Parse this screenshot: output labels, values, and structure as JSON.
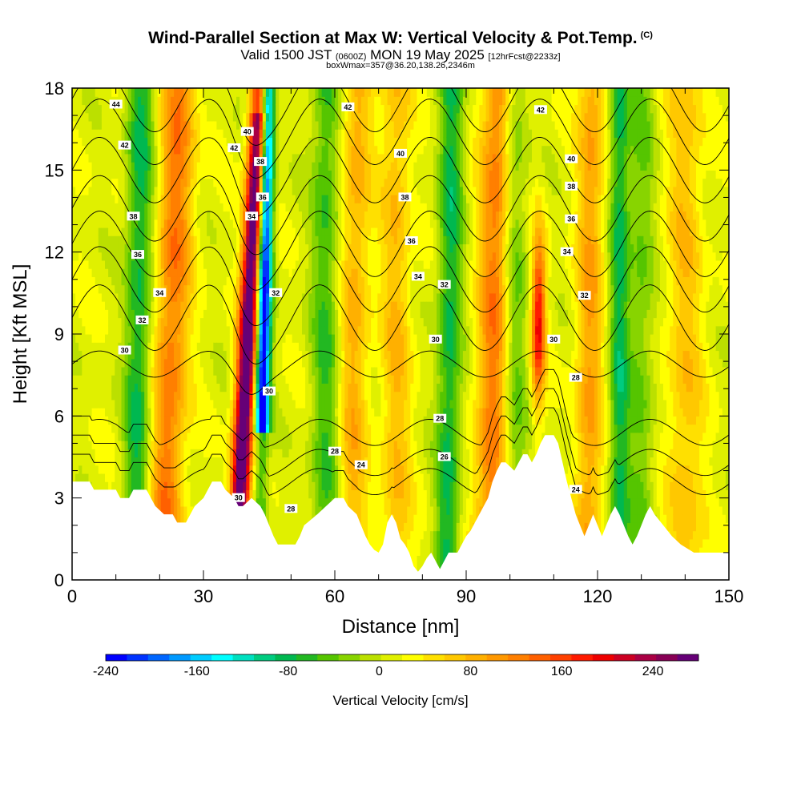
{
  "header": {
    "title": "Wind-Parallel Section at Max W: Vertical Velocity & Pot.Temp.",
    "copyright": "(C)",
    "valid_prefix": "Valid 1500 JST",
    "valid_utc": "(0600Z)",
    "valid_date": "MON 19 May 2025",
    "forecast": "[12hrFcst@2233z]",
    "box_info": "boxWmax=357@36.20,138.26,2346m"
  },
  "chart_data": {
    "type": "heatmap",
    "xlabel": "Distance [nm]",
    "ylabel": "Height [Kft MSL]",
    "xlim": [
      0,
      150
    ],
    "ylim": [
      0,
      18
    ],
    "x_ticks": [
      "0",
      "30",
      "60",
      "90",
      "120",
      "150"
    ],
    "y_ticks": [
      "0",
      "3",
      "6",
      "9",
      "12",
      "15",
      "18"
    ],
    "colorbar": {
      "title": "Vertical Velocity [cm/s]",
      "range": [
        -240,
        280
      ],
      "tick_labels": [
        "-240",
        "-160",
        "-80",
        "0",
        "80",
        "160",
        "240"
      ],
      "colors": [
        "#0000ff",
        "#0033ff",
        "#0066ff",
        "#0099ff",
        "#00ccff",
        "#00ffff",
        "#00e0c0",
        "#00cc80",
        "#00b850",
        "#22b822",
        "#55c500",
        "#88d400",
        "#bbe000",
        "#e0f000",
        "#ffff00",
        "#ffe000",
        "#ffc800",
        "#ffb000",
        "#ff9800",
        "#ff7f00",
        "#ff6000",
        "#ff4000",
        "#ff1a00",
        "#ee0000",
        "#cc0022",
        "#aa0044",
        "#880055",
        "#660077"
      ]
    },
    "w_features": [
      {
        "type": "updraft",
        "x": 38.5,
        "peak_cm_s": 357
      },
      {
        "type": "downdraft",
        "x": 43.5,
        "peak_cm_s": -240
      },
      {
        "type": "updraft",
        "x": 106.5,
        "peak_cm_s": 180
      },
      {
        "type": "updraft",
        "x": 22,
        "peak_cm_s": 110
      },
      {
        "type": "updraft",
        "x": 96,
        "peak_cm_s": 110
      },
      {
        "type": "updraft",
        "x": 118,
        "peak_cm_s": 90
      },
      {
        "type": "updraft",
        "x": 64,
        "peak_cm_s": 70
      },
      {
        "type": "downdraft",
        "x": 15,
        "peak_cm_s": -90
      },
      {
        "type": "downdraft",
        "x": 86,
        "peak_cm_s": -90
      },
      {
        "type": "downdraft",
        "x": 125,
        "peak_cm_s": -90
      }
    ],
    "terrain": [
      [
        0,
        3.6
      ],
      [
        4,
        3.6
      ],
      [
        5,
        3.3
      ],
      [
        10,
        3.3
      ],
      [
        11,
        3.0
      ],
      [
        13,
        3.0
      ],
      [
        14,
        3.3
      ],
      [
        17,
        3.3
      ],
      [
        18,
        3.0
      ],
      [
        19,
        2.7
      ],
      [
        21,
        2.4
      ],
      [
        23,
        2.4
      ],
      [
        24,
        2.1
      ],
      [
        26,
        2.1
      ],
      [
        27,
        2.4
      ],
      [
        28,
        2.7
      ],
      [
        30,
        3.0
      ],
      [
        31,
        3.3
      ],
      [
        32,
        3.6
      ],
      [
        34,
        3.6
      ],
      [
        35,
        3.3
      ],
      [
        37,
        3.0
      ],
      [
        38,
        2.7
      ],
      [
        39,
        2.7
      ],
      [
        41,
        3.0
      ],
      [
        43,
        2.7
      ],
      [
        44,
        2.4
      ],
      [
        45,
        2.0
      ],
      [
        46,
        1.6
      ],
      [
        47,
        1.3
      ],
      [
        51,
        1.3
      ],
      [
        52,
        1.6
      ],
      [
        53,
        2.0
      ],
      [
        56,
        2.4
      ],
      [
        58,
        2.7
      ],
      [
        60,
        3.0
      ],
      [
        62,
        3.0
      ],
      [
        63,
        2.7
      ],
      [
        65,
        2.4
      ],
      [
        66,
        2.0
      ],
      [
        67,
        1.6
      ],
      [
        68,
        1.3
      ],
      [
        69,
        1.1
      ],
      [
        70,
        1.0
      ],
      [
        71,
        1.3
      ],
      [
        72,
        2.1
      ],
      [
        73,
        2.4
      ],
      [
        74,
        2.1
      ],
      [
        75,
        1.5
      ],
      [
        76,
        1.3
      ],
      [
        77,
        1.0
      ],
      [
        78,
        0.5
      ],
      [
        79,
        0.3
      ],
      [
        80,
        0.5
      ],
      [
        81,
        0.8
      ],
      [
        82,
        1.0
      ],
      [
        83,
        0.7
      ],
      [
        84,
        0.4
      ],
      [
        85,
        0.7
      ],
      [
        86,
        1.0
      ],
      [
        88,
        1.0
      ],
      [
        89,
        1.3
      ],
      [
        90,
        1.6
      ],
      [
        91,
        1.8
      ],
      [
        92,
        2.1
      ],
      [
        93,
        2.4
      ],
      [
        94,
        2.7
      ],
      [
        95,
        3.0
      ],
      [
        96,
        3.6
      ],
      [
        97,
        4.0
      ],
      [
        98,
        4.3
      ],
      [
        99,
        4.3
      ],
      [
        101,
        4.0
      ],
      [
        102,
        4.3
      ],
      [
        103,
        4.6
      ],
      [
        104,
        4.6
      ],
      [
        105,
        4.3
      ],
      [
        106,
        4.6
      ],
      [
        107,
        5.0
      ],
      [
        108,
        5.3
      ],
      [
        110,
        5.3
      ],
      [
        111,
        5.0
      ],
      [
        112,
        4.3
      ],
      [
        113,
        3.6
      ],
      [
        114,
        3.0
      ],
      [
        115,
        2.4
      ],
      [
        116,
        2.0
      ],
      [
        117,
        1.6
      ],
      [
        118,
        2.0
      ],
      [
        119,
        2.4
      ],
      [
        120,
        2.0
      ],
      [
        121,
        1.6
      ],
      [
        122,
        2.0
      ],
      [
        123,
        2.4
      ],
      [
        124,
        2.7
      ],
      [
        125,
        2.4
      ],
      [
        126,
        2.0
      ],
      [
        127,
        1.6
      ],
      [
        128,
        1.3
      ],
      [
        129,
        1.6
      ],
      [
        130,
        2.0
      ],
      [
        131,
        2.4
      ],
      [
        132,
        2.7
      ],
      [
        133,
        2.4
      ],
      [
        135,
        2.0
      ],
      [
        137,
        1.6
      ],
      [
        139,
        1.3
      ],
      [
        142,
        1.0
      ],
      [
        145,
        1.0
      ],
      [
        147,
        1.0
      ],
      [
        149,
        1.0
      ],
      [
        150,
        1.0
      ]
    ],
    "theta_contours": {
      "levels": [
        24,
        26,
        28,
        30,
        32,
        34,
        36,
        38,
        40,
        42,
        44
      ],
      "labels": [
        {
          "text": "44",
          "x": 10,
          "y": 17.4
        },
        {
          "text": "42",
          "x": 12,
          "y": 15.9
        },
        {
          "text": "42",
          "x": 37,
          "y": 15.8
        },
        {
          "text": "40",
          "x": 40,
          "y": 16.4
        },
        {
          "text": "38",
          "x": 43,
          "y": 15.3
        },
        {
          "text": "36",
          "x": 43.5,
          "y": 14.0
        },
        {
          "text": "34",
          "x": 41,
          "y": 13.3
        },
        {
          "text": "38",
          "x": 14,
          "y": 13.3
        },
        {
          "text": "36",
          "x": 15,
          "y": 11.9
        },
        {
          "text": "34",
          "x": 20,
          "y": 10.5
        },
        {
          "text": "32",
          "x": 16,
          "y": 9.5
        },
        {
          "text": "30",
          "x": 12,
          "y": 8.4
        },
        {
          "text": "32",
          "x": 46.5,
          "y": 10.5
        },
        {
          "text": "30",
          "x": 45,
          "y": 6.9
        },
        {
          "text": "42",
          "x": 63,
          "y": 17.3
        },
        {
          "text": "40",
          "x": 75,
          "y": 15.6
        },
        {
          "text": "38",
          "x": 76,
          "y": 14.0
        },
        {
          "text": "36",
          "x": 77.5,
          "y": 12.4
        },
        {
          "text": "34",
          "x": 79,
          "y": 11.1
        },
        {
          "text": "32",
          "x": 85,
          "y": 10.8
        },
        {
          "text": "30",
          "x": 83,
          "y": 8.8
        },
        {
          "text": "28",
          "x": 84,
          "y": 5.9
        },
        {
          "text": "26",
          "x": 85,
          "y": 4.5
        },
        {
          "text": "28",
          "x": 60,
          "y": 4.7
        },
        {
          "text": "24",
          "x": 66,
          "y": 4.2
        },
        {
          "text": "28",
          "x": 50,
          "y": 2.6
        },
        {
          "text": "30",
          "x": 38,
          "y": 3.0
        },
        {
          "text": "42",
          "x": 107,
          "y": 17.2
        },
        {
          "text": "40",
          "x": 114,
          "y": 15.4
        },
        {
          "text": "38",
          "x": 114,
          "y": 14.4
        },
        {
          "text": "36",
          "x": 114,
          "y": 13.2
        },
        {
          "text": "34",
          "x": 113,
          "y": 12.0
        },
        {
          "text": "32",
          "x": 117,
          "y": 10.4
        },
        {
          "text": "30",
          "x": 110,
          "y": 8.8
        },
        {
          "text": "28",
          "x": 115,
          "y": 7.4
        },
        {
          "text": "24",
          "x": 115,
          "y": 3.3
        }
      ]
    }
  }
}
